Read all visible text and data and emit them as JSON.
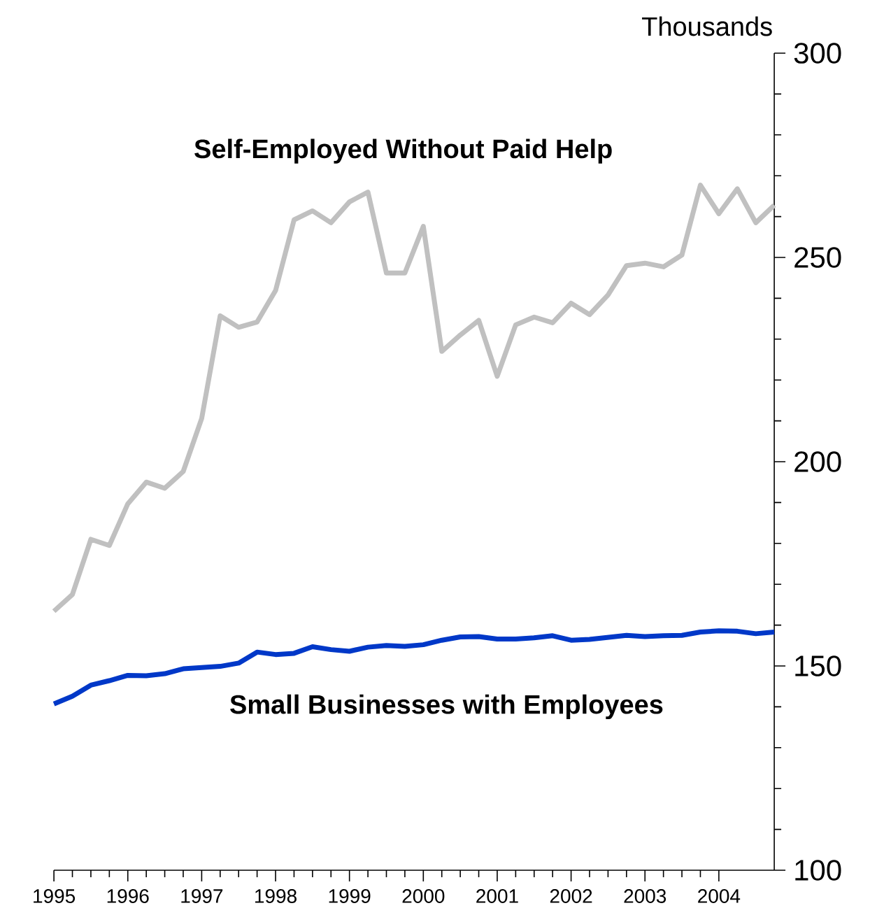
{
  "chart_data": {
    "type": "line",
    "ylabel": "Thousands",
    "x": [
      1995,
      1995.25,
      1995.5,
      1995.75,
      1996,
      1996.25,
      1996.5,
      1996.75,
      1997,
      1997.25,
      1997.5,
      1997.75,
      1998,
      1998.25,
      1998.5,
      1998.75,
      1999,
      1999.25,
      1999.5,
      1999.75,
      2000,
      2000.25,
      2000.5,
      2000.75,
      2001,
      2001.25,
      2001.5,
      2001.75,
      2002,
      2002.25,
      2002.5,
      2002.75,
      2003,
      2003.25,
      2003.5,
      2003.75,
      2004,
      2004.25,
      2004.5,
      2004.75
    ],
    "series": [
      {
        "name": "Self-Employed Without Paid Help",
        "color": "#c0c0c0",
        "values": [
          163.4,
          167.5,
          181,
          179.5,
          189.7,
          195,
          193.5,
          197.6,
          210.6,
          235.7,
          232.9,
          234.2,
          241.9,
          259.2,
          261.4,
          258.5,
          263.6,
          266,
          246.2,
          246.2,
          257.6,
          227,
          231,
          234.6,
          220.9,
          233.5,
          235.4,
          234,
          238.8,
          236,
          240.8,
          248,
          248.6,
          247.7,
          250.6,
          267.7,
          260.7,
          266.8,
          258.5,
          262.8
        ]
      },
      {
        "name": "Small Businesses with Employees",
        "color": "#0038c8",
        "values": [
          140.7,
          142.6,
          145.3,
          146.4,
          147.7,
          147.6,
          148.1,
          149.3,
          149.6,
          149.9,
          150.7,
          153.4,
          152.8,
          153.1,
          154.7,
          154,
          153.6,
          154.6,
          155,
          154.8,
          155.2,
          156.3,
          157.1,
          157.2,
          156.6,
          156.6,
          156.9,
          157.4,
          156.3,
          156.5,
          157,
          157.5,
          157.2,
          157.4,
          157.5,
          158.3,
          158.6,
          158.5,
          157.9,
          158.3
        ]
      }
    ],
    "xlim": [
      1995,
      2004.75
    ],
    "xticks": [
      1995,
      1996,
      1997,
      1998,
      1999,
      2000,
      2001,
      2002,
      2003,
      2004
    ],
    "ylim": [
      100,
      300
    ],
    "yticks": [
      100,
      150,
      200,
      250,
      300
    ],
    "grid": false,
    "legend": false,
    "marker": "none",
    "line_style": "solid"
  }
}
